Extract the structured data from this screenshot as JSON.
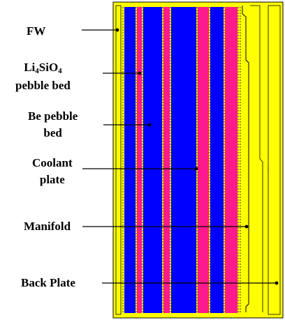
{
  "colors": {
    "frame": "#ffff00",
    "pebble_bed": "#0000ff",
    "coolant_plate": "#ff1a8c",
    "outline": "#000000"
  },
  "labels": {
    "fw": "FW",
    "li4sio4": {
      "prefix": "Li",
      "sub1": "4",
      "mid": "SiO",
      "sub2": "4",
      "line2": "pebble bed"
    },
    "be_pebble_bed": {
      "line1": "Be pebble",
      "line2": "bed"
    },
    "coolant_plate": {
      "line1": "Coolant",
      "line2": "plate"
    },
    "manifold": "Manifold",
    "back_plate": "Back Plate"
  }
}
